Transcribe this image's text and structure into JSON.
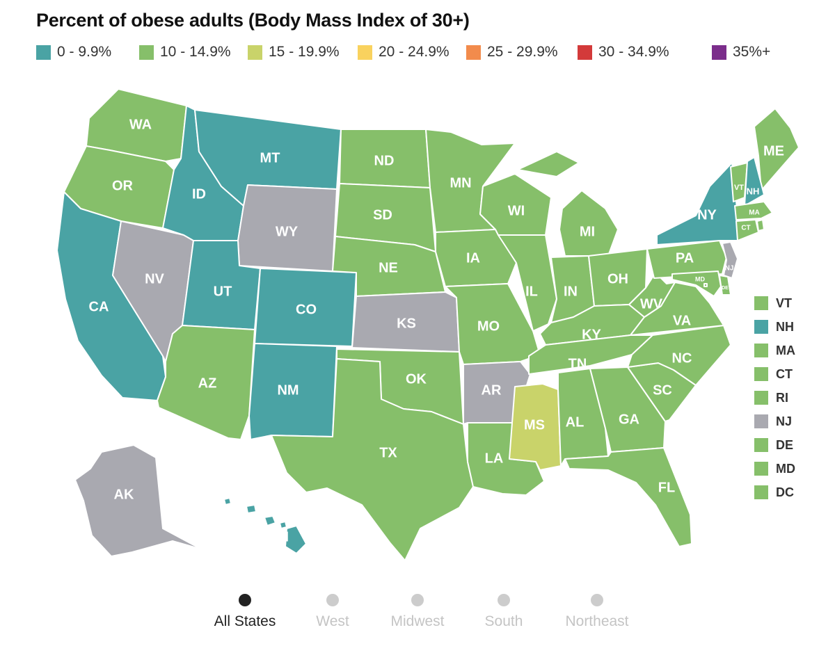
{
  "title": "Percent of obese adults (Body Mass Index of 30+)",
  "legend": [
    {
      "label": "0 - 9.9%",
      "color": "#4aa3a4"
    },
    {
      "label": "10 - 14.9%",
      "color": "#86bf6a"
    },
    {
      "label": "15 - 19.9%",
      "color": "#c9d36a"
    },
    {
      "label": "20 - 24.9%",
      "color": "#f9d25e"
    },
    {
      "label": "25 - 29.9%",
      "color": "#f28b4c"
    },
    {
      "label": "30 - 34.9%",
      "color": "#d33a3a"
    },
    {
      "label": "35%+",
      "color": "#7b2d8b"
    }
  ],
  "no_data_color": "#a9a9b0",
  "states": [
    {
      "code": "WA",
      "category": 1
    },
    {
      "code": "OR",
      "category": 1
    },
    {
      "code": "CA",
      "category": 0
    },
    {
      "code": "NV",
      "category": null
    },
    {
      "code": "ID",
      "category": 0
    },
    {
      "code": "MT",
      "category": 0
    },
    {
      "code": "WY",
      "category": null
    },
    {
      "code": "UT",
      "category": 0
    },
    {
      "code": "CO",
      "category": 0
    },
    {
      "code": "AZ",
      "category": 1
    },
    {
      "code": "NM",
      "category": 0
    },
    {
      "code": "ND",
      "category": 1
    },
    {
      "code": "SD",
      "category": 1
    },
    {
      "code": "NE",
      "category": 1
    },
    {
      "code": "KS",
      "category": null
    },
    {
      "code": "OK",
      "category": 1
    },
    {
      "code": "TX",
      "category": 1
    },
    {
      "code": "MN",
      "category": 1
    },
    {
      "code": "IA",
      "category": 1
    },
    {
      "code": "MO",
      "category": 1
    },
    {
      "code": "AR",
      "category": null
    },
    {
      "code": "LA",
      "category": 1
    },
    {
      "code": "WI",
      "category": 1
    },
    {
      "code": "IL",
      "category": 1
    },
    {
      "code": "MI",
      "category": 1
    },
    {
      "code": "IN",
      "category": 1
    },
    {
      "code": "OH",
      "category": 1
    },
    {
      "code": "KY",
      "category": 1
    },
    {
      "code": "TN",
      "category": 1
    },
    {
      "code": "MS",
      "category": 2
    },
    {
      "code": "AL",
      "category": 1
    },
    {
      "code": "GA",
      "category": 1
    },
    {
      "code": "FL",
      "category": 1
    },
    {
      "code": "SC",
      "category": 1
    },
    {
      "code": "NC",
      "category": 1
    },
    {
      "code": "VA",
      "category": 1
    },
    {
      "code": "WV",
      "category": 1
    },
    {
      "code": "PA",
      "category": 1
    },
    {
      "code": "NY",
      "category": 0
    },
    {
      "code": "ME",
      "category": 1
    },
    {
      "code": "AK",
      "category": null
    },
    {
      "code": "HI",
      "category": 0
    }
  ],
  "small_states": [
    {
      "code": "VT",
      "category": 1
    },
    {
      "code": "NH",
      "category": 0
    },
    {
      "code": "MA",
      "category": 1
    },
    {
      "code": "CT",
      "category": 1
    },
    {
      "code": "RI",
      "category": 1
    },
    {
      "code": "NJ",
      "category": null
    },
    {
      "code": "DE",
      "category": 1
    },
    {
      "code": "MD",
      "category": 1
    },
    {
      "code": "DC",
      "category": 1
    }
  ],
  "region_tabs": [
    {
      "label": "All States",
      "active": true
    },
    {
      "label": "West",
      "active": false
    },
    {
      "label": "Midwest",
      "active": false
    },
    {
      "label": "South",
      "active": false
    },
    {
      "label": "Northeast",
      "active": false
    }
  ]
}
